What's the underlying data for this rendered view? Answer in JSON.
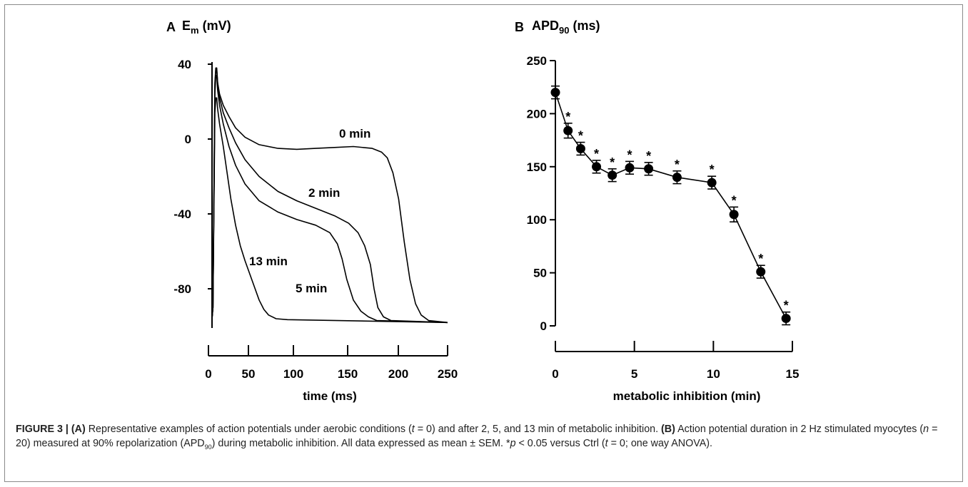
{
  "chart_data": [
    {
      "type": "line",
      "panel": "A",
      "title_main": "E",
      "title_sub": "m",
      "title_unit": " (mV)",
      "xlabel": "time (ms)",
      "xlim": [
        0,
        250
      ],
      "ylim": [
        -100,
        45
      ],
      "xticks": [
        "0",
        "50",
        "100",
        "150",
        "200",
        "250"
      ],
      "yticks": [
        "40",
        "0",
        "-40",
        "-80"
      ],
      "series": [
        {
          "name": "0 min",
          "points": [
            [
              0,
              -96
            ],
            [
              1,
              -90
            ],
            [
              3,
              30
            ],
            [
              4,
              38
            ],
            [
              5,
              38
            ],
            [
              6,
              30
            ],
            [
              8,
              24
            ],
            [
              12,
              18
            ],
            [
              18,
              12
            ],
            [
              25,
              6
            ],
            [
              35,
              1
            ],
            [
              50,
              -3
            ],
            [
              70,
              -5
            ],
            [
              90,
              -5.5
            ],
            [
              110,
              -5
            ],
            [
              130,
              -4.5
            ],
            [
              150,
              -4
            ],
            [
              170,
              -5
            ],
            [
              180,
              -7
            ],
            [
              186,
              -10
            ],
            [
              192,
              -18
            ],
            [
              198,
              -32
            ],
            [
              204,
              -55
            ],
            [
              210,
              -75
            ],
            [
              216,
              -88
            ],
            [
              222,
              -94
            ],
            [
              230,
              -97
            ],
            [
              250,
              -98
            ]
          ]
        },
        {
          "name": "2 min",
          "points": [
            [
              0,
              -96
            ],
            [
              1,
              -90
            ],
            [
              3,
              28
            ],
            [
              4,
              37
            ],
            [
              5,
              37
            ],
            [
              6,
              30
            ],
            [
              8,
              22
            ],
            [
              12,
              14
            ],
            [
              18,
              6
            ],
            [
              25,
              -2
            ],
            [
              35,
              -11
            ],
            [
              50,
              -20
            ],
            [
              70,
              -28
            ],
            [
              90,
              -33
            ],
            [
              110,
              -37
            ],
            [
              130,
              -41
            ],
            [
              145,
              -45
            ],
            [
              155,
              -50
            ],
            [
              162,
              -57
            ],
            [
              168,
              -67
            ],
            [
              172,
              -80
            ],
            [
              176,
              -90
            ],
            [
              182,
              -95
            ],
            [
              190,
              -97
            ],
            [
              250,
              -98
            ]
          ]
        },
        {
          "name": "5 min",
          "points": [
            [
              0,
              -96
            ],
            [
              1,
              -90
            ],
            [
              3,
              24
            ],
            [
              4,
              34
            ],
            [
              5,
              34
            ],
            [
              6,
              26
            ],
            [
              8,
              18
            ],
            [
              12,
              8
            ],
            [
              18,
              -4
            ],
            [
              25,
              -14
            ],
            [
              35,
              -24
            ],
            [
              50,
              -33
            ],
            [
              70,
              -39
            ],
            [
              90,
              -43
            ],
            [
              110,
              -46
            ],
            [
              125,
              -50
            ],
            [
              133,
              -56
            ],
            [
              138,
              -64
            ],
            [
              143,
              -75
            ],
            [
              150,
              -86
            ],
            [
              158,
              -92
            ],
            [
              166,
              -95
            ],
            [
              175,
              -97
            ],
            [
              250,
              -98
            ]
          ]
        },
        {
          "name": "13 min",
          "points": [
            [
              0,
              -96
            ],
            [
              1,
              -90
            ],
            [
              3,
              14
            ],
            [
              4,
              22
            ],
            [
              5,
              22
            ],
            [
              6,
              16
            ],
            [
              8,
              8
            ],
            [
              12,
              -4
            ],
            [
              16,
              -18
            ],
            [
              20,
              -32
            ],
            [
              25,
              -46
            ],
            [
              30,
              -57
            ],
            [
              35,
              -65
            ],
            [
              40,
              -72
            ],
            [
              45,
              -79
            ],
            [
              50,
              -86
            ],
            [
              55,
              -91
            ],
            [
              60,
              -94
            ],
            [
              68,
              -96
            ],
            [
              80,
              -96.5
            ],
            [
              250,
              -98
            ]
          ]
        }
      ],
      "annotations": [
        "0 min",
        "2 min",
        "5 min",
        "13 min"
      ]
    },
    {
      "type": "line",
      "panel": "B",
      "title_main": "APD",
      "title_sub": "90",
      "title_unit": " (ms)",
      "xlabel": "metabolic inhibition (min)",
      "xlim": [
        0,
        15
      ],
      "ylim": [
        0,
        250
      ],
      "xticks": [
        "0",
        "5",
        "10",
        "15"
      ],
      "yticks": [
        "250",
        "200",
        "150",
        "100",
        "50",
        "0"
      ],
      "x": [
        0,
        0.8,
        1.6,
        2.6,
        3.6,
        4.7,
        5.9,
        7.7,
        9.9,
        11.3,
        13.0,
        14.6
      ],
      "y": [
        220,
        184,
        167,
        150,
        142,
        149,
        148,
        140,
        135,
        105,
        51,
        7
      ],
      "err": [
        6,
        7,
        6,
        6,
        6,
        6,
        6,
        6,
        6,
        7,
        6,
        6
      ],
      "significance_marker": "*",
      "significant": [
        false,
        true,
        true,
        true,
        true,
        true,
        true,
        true,
        true,
        true,
        true,
        true
      ]
    }
  ],
  "caption": {
    "label": "FIGURE 3 | ",
    "a_ref": "(A)",
    "a_text": " Representative examples of action potentials under aerobic conditions (",
    "t_var": "t",
    "t0_text": " = 0) and after 2, 5, and 13 min of metabolic inhibition. ",
    "b_ref": "(B)",
    "b_text1": " Action potential duration in 2 Hz stimulated myocytes (",
    "n_var": "n",
    "n_text": " = 20) measured at 90% repolarization (APD",
    "apd_sub": "90",
    "b_text2": ") during metabolic inhibition. All data expressed as mean ± SEM. *",
    "p_var": "p",
    "p_text": " < 0.05 versus Ctrl (",
    "t_var2": "t",
    "end_text": " = 0; one way ANOVA)."
  }
}
